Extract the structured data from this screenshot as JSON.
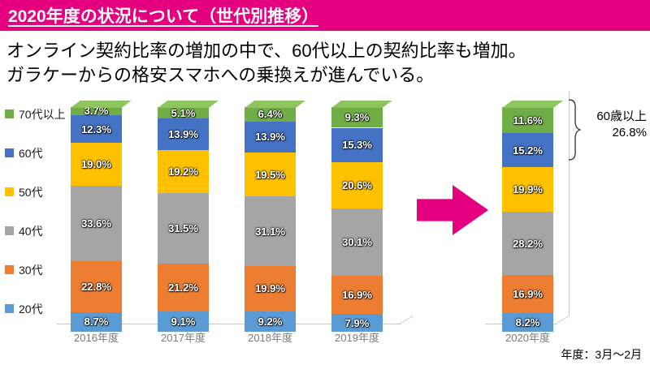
{
  "colors": {
    "accent": "#E4007F",
    "axis": "#C9C9C9",
    "top_face": "#8FC55F"
  },
  "header": {
    "title": "2020年度の状況について（世代別推移）"
  },
  "description": {
    "line1": "オンライン契約比率の増加の中で、60代以上の契約比率も増加。",
    "line2": "ガラケーからの格安スマホへの乗換えが進んでいる。"
  },
  "chart_data": {
    "type": "bar",
    "stacked": true,
    "unit": "%",
    "ylim": [
      0,
      100
    ],
    "categories": [
      "2016年度",
      "2017年度",
      "2018年度",
      "2019年度",
      "2020年度"
    ],
    "series": [
      {
        "name": "20代",
        "color": "#5B9BD5",
        "values": [
          8.7,
          9.1,
          9.2,
          7.9,
          8.2
        ]
      },
      {
        "name": "30代",
        "color": "#ED7D31",
        "values": [
          22.8,
          21.2,
          19.9,
          16.9,
          16.9
        ]
      },
      {
        "name": "40代",
        "color": "#A5A5A5",
        "values": [
          33.6,
          31.5,
          31.1,
          30.1,
          28.2
        ]
      },
      {
        "name": "50代",
        "color": "#FFC000",
        "values": [
          19.0,
          19.2,
          19.5,
          20.6,
          19.9
        ]
      },
      {
        "name": "60代",
        "color": "#4472C4",
        "values": [
          12.3,
          13.9,
          13.9,
          15.3,
          15.2
        ]
      },
      {
        "name": "70代以上",
        "color": "#70AD47",
        "values": [
          3.7,
          5.1,
          6.4,
          9.3,
          11.6
        ]
      }
    ],
    "legend_order": [
      "70代以上",
      "60代",
      "50代",
      "40代",
      "30代",
      "20代"
    ],
    "legend_position": "left"
  },
  "callout": {
    "line1": "60歳以上",
    "line2": "26.8%"
  },
  "footnote": {
    "text": "年度：3月～2月"
  }
}
